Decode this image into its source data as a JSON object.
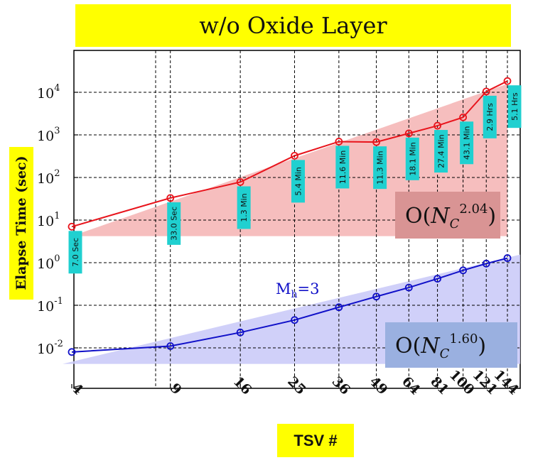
{
  "chart_data": {
    "type": "line",
    "title": "w/o Oxide Layer",
    "xlabel": "TSV #",
    "ylabel": "Elapse Time (sec)",
    "x_scale": "log",
    "y_scale": "log",
    "x": [
      4,
      9,
      16,
      25,
      36,
      49,
      64,
      81,
      100,
      121,
      144
    ],
    "x_ticks": [
      "4",
      "9",
      "16",
      "25",
      "36",
      "49",
      "64",
      "81",
      "100",
      "121",
      "144"
    ],
    "y_ticks": [
      {
        "value": 0.01,
        "base": "10",
        "exp": "-2"
      },
      {
        "value": 0.1,
        "base": "10",
        "exp": "-1"
      },
      {
        "value": 1,
        "base": "10",
        "exp": "0"
      },
      {
        "value": 10,
        "base": "10",
        "exp": "1"
      },
      {
        "value": 100,
        "base": "10",
        "exp": "2"
      },
      {
        "value": 1000,
        "base": "10",
        "exp": "3"
      },
      {
        "value": 10000,
        "base": "10",
        "exp": "4"
      }
    ],
    "ylim": [
      0.003,
      100000
    ],
    "grid": true,
    "series": [
      {
        "color": "#e8141c",
        "marker": "circle",
        "values": [
          7.0,
          33.0,
          78,
          324,
          696,
          678,
          1086,
          1644,
          2586,
          10440,
          18360
        ],
        "labels": [
          "7.0 Sec",
          "33.0 Sec",
          "1.3 Min",
          "5.4 Min",
          "11.6 Min",
          "11.3 Min",
          "18.1 Min",
          "27.4 Min",
          "43.1 Min",
          "2.9 Hrs",
          "5.1 Hrs"
        ],
        "complexity": {
          "prefix": "O",
          "base": "N",
          "sub": "C",
          "exp": "2.04",
          "fill": "#f4b3b3"
        }
      },
      {
        "color": "#1010c8",
        "marker": "circle",
        "values": [
          0.008,
          0.011,
          0.023,
          0.045,
          0.09,
          0.16,
          0.26,
          0.42,
          0.66,
          0.95,
          1.28
        ],
        "labels": [],
        "annotation": {
          "main": "M",
          "sub": "h",
          "rest": "=3"
        },
        "complexity": {
          "prefix": "O",
          "base": "N",
          "sub": "C",
          "exp": "1.60",
          "fill": "#c8c8f8"
        }
      }
    ]
  }
}
